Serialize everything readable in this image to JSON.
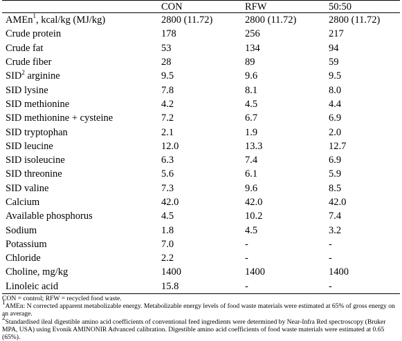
{
  "table": {
    "columns": [
      "",
      "CON",
      "RFW",
      "50:50"
    ],
    "rows": [
      {
        "label": "AMEn",
        "sup": "1",
        "label_suffix": ", kcal/kg (MJ/kg)",
        "values": [
          "2800 (11.72)",
          "2800 (11.72)",
          "2800 (11.72)"
        ]
      },
      {
        "label": "Crude protein",
        "sup": "",
        "label_suffix": "",
        "values": [
          "178",
          "256",
          "217"
        ]
      },
      {
        "label": "Crude fat",
        "sup": "",
        "label_suffix": "",
        "values": [
          "53",
          "134",
          "94"
        ]
      },
      {
        "label": "Crude fiber",
        "sup": "",
        "label_suffix": "",
        "values": [
          "28",
          "89",
          "59"
        ]
      },
      {
        "label": "SID",
        "sup": "2",
        "label_suffix": " arginine",
        "values": [
          "9.5",
          "9.6",
          "9.5"
        ]
      },
      {
        "label": "SID lysine",
        "sup": "",
        "label_suffix": "",
        "values": [
          "7.8",
          "8.1",
          "8.0"
        ]
      },
      {
        "label": "SID methionine",
        "sup": "",
        "label_suffix": "",
        "values": [
          "4.2",
          "4.5",
          "4.4"
        ]
      },
      {
        "label": "SID methionine + cysteine",
        "sup": "",
        "label_suffix": "",
        "values": [
          "7.2",
          "6.7",
          "6.9"
        ]
      },
      {
        "label": "SID tryptophan",
        "sup": "",
        "label_suffix": "",
        "values": [
          "2.1",
          "1.9",
          "2.0"
        ]
      },
      {
        "label": "SID leucine",
        "sup": "",
        "label_suffix": "",
        "values": [
          "12.0",
          "13.3",
          "12.7"
        ]
      },
      {
        "label": "SID isoleucine",
        "sup": "",
        "label_suffix": "",
        "values": [
          "6.3",
          "7.4",
          "6.9"
        ]
      },
      {
        "label": "SID threonine",
        "sup": "",
        "label_suffix": "",
        "values": [
          "5.6",
          "6.1",
          "5.9"
        ]
      },
      {
        "label": "SID valine",
        "sup": "",
        "label_suffix": "",
        "values": [
          "7.3",
          "9.6",
          "8.5"
        ]
      },
      {
        "label": "Calcium",
        "sup": "",
        "label_suffix": "",
        "values": [
          "42.0",
          "42.0",
          "42.0"
        ]
      },
      {
        "label": "Available phosphorus",
        "sup": "",
        "label_suffix": "",
        "values": [
          "4.5",
          "10.2",
          "7.4"
        ]
      },
      {
        "label": "Sodium",
        "sup": "",
        "label_suffix": "",
        "values": [
          "1.8",
          "4.5",
          "3.2"
        ]
      },
      {
        "label": "Potassium",
        "sup": "",
        "label_suffix": "",
        "values": [
          "7.0",
          "-",
          "-"
        ]
      },
      {
        "label": "Chloride",
        "sup": "",
        "label_suffix": "",
        "values": [
          "2.2",
          "-",
          "-"
        ]
      },
      {
        "label": "Choline, mg/kg",
        "sup": "",
        "label_suffix": "",
        "values": [
          "1400",
          "1400",
          "1400"
        ]
      },
      {
        "label": "Linoleic acid",
        "sup": "",
        "label_suffix": "",
        "values": [
          "15.8",
          "-",
          "-"
        ]
      }
    ]
  },
  "notes": {
    "abbrev": "CON = control; RFW = recycled food waste.",
    "note1_sup": "1",
    "note1": "AMEn: N corrected apparent metabolizable energy. Metabolizable energy levels of food waste materials were estimated at 65% of gross energy on an average.",
    "note2_sup": "2",
    "note2": "Standardised ileal digestible amino acid coefficients of conventional feed ingredients were determined by Near-Infra Red spectroscopy (Bruker MPA, USA) using Evonik AMINONIR Advanced calibration. Digestible amino acid coefficients of food waste materials were estimated at 0.65 (65%)."
  }
}
